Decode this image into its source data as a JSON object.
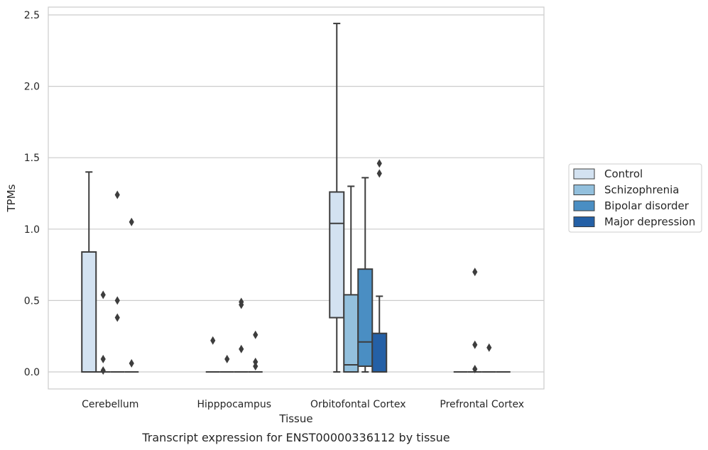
{
  "caption": "Transcript expression for ENST00000336112 by tissue",
  "chart_data": {
    "type": "box",
    "xlabel": "Tissue",
    "ylabel": "TPMs",
    "ylim": [
      -0.12,
      2.57
    ],
    "yticks": [
      "0.0",
      "0.5",
      "1.0",
      "1.5",
      "2.0",
      "2.5"
    ],
    "ytick_values": [
      0,
      0.5,
      1.0,
      1.5,
      2.0,
      2.5
    ],
    "grid": true,
    "legend_position": "right",
    "categories": [
      "Cerebellum",
      "Hipppocampus",
      "Orbitofontal Cortex",
      "Prefrontal Cortex"
    ],
    "series": [
      {
        "name": "Control",
        "color": "#d3e2f1"
      },
      {
        "name": "Schizophrenia",
        "color": "#93c0dd"
      },
      {
        "name": "Bipolar disorder",
        "color": "#4a8ec3"
      },
      {
        "name": "Major depression",
        "color": "#2460a6"
      }
    ],
    "boxes": [
      {
        "category": "Cerebellum",
        "series": "Control",
        "whisker_low": 0,
        "q1": 0,
        "median": 0,
        "q3": 0.84,
        "whisker_high": 1.4,
        "outliers": []
      },
      {
        "category": "Cerebellum",
        "series": "Schizophrenia",
        "whisker_low": 0,
        "q1": 0,
        "median": 0,
        "q3": 0,
        "whisker_high": 0,
        "outliers": [
          0.54,
          0.09,
          0.01
        ]
      },
      {
        "category": "Cerebellum",
        "series": "Bipolar disorder",
        "whisker_low": 0,
        "q1": 0,
        "median": 0,
        "q3": 0,
        "whisker_high": 0,
        "outliers": [
          1.24,
          0.5,
          0.38
        ]
      },
      {
        "category": "Cerebellum",
        "series": "Major depression",
        "whisker_low": 0,
        "q1": 0,
        "median": 0,
        "q3": 0,
        "whisker_high": 0,
        "outliers": [
          1.05,
          0.06
        ]
      },
      {
        "category": "Hipppocampus",
        "series": "Control",
        "whisker_low": 0,
        "q1": 0,
        "median": 0,
        "q3": 0,
        "whisker_high": 0,
        "outliers": [
          0.22
        ]
      },
      {
        "category": "Hipppocampus",
        "series": "Schizophrenia",
        "whisker_low": 0,
        "q1": 0,
        "median": 0,
        "q3": 0,
        "whisker_high": 0,
        "outliers": [
          0.09
        ]
      },
      {
        "category": "Hipppocampus",
        "series": "Bipolar disorder",
        "whisker_low": 0,
        "q1": 0,
        "median": 0,
        "q3": 0,
        "whisker_high": 0,
        "outliers": [
          0.49,
          0.47,
          0.16
        ]
      },
      {
        "category": "Hipppocampus",
        "series": "Major depression",
        "whisker_low": 0,
        "q1": 0,
        "median": 0,
        "q3": 0,
        "whisker_high": 0,
        "outliers": [
          0.26,
          0.07,
          0.04
        ]
      },
      {
        "category": "Orbitofontal Cortex",
        "series": "Control",
        "whisker_low": 0,
        "q1": 0.38,
        "median": 1.04,
        "q3": 1.26,
        "whisker_high": 2.44,
        "outliers": []
      },
      {
        "category": "Orbitofontal Cortex",
        "series": "Schizophrenia",
        "whisker_low": 0,
        "q1": 0,
        "median": 0.05,
        "q3": 0.54,
        "whisker_high": 1.3,
        "outliers": []
      },
      {
        "category": "Orbitofontal Cortex",
        "series": "Bipolar disorder",
        "whisker_low": 0,
        "q1": 0.04,
        "median": 0.21,
        "q3": 0.72,
        "whisker_high": 1.36,
        "outliers": []
      },
      {
        "category": "Orbitofontal Cortex",
        "series": "Major depression",
        "whisker_low": 0,
        "q1": 0,
        "median": 0,
        "q3": 0.27,
        "whisker_high": 0.53,
        "outliers": [
          1.46,
          1.39
        ]
      },
      {
        "category": "Prefrontal Cortex",
        "series": "Control",
        "whisker_low": 0,
        "q1": 0,
        "median": 0,
        "q3": 0,
        "whisker_high": 0,
        "outliers": []
      },
      {
        "category": "Prefrontal Cortex",
        "series": "Schizophrenia",
        "whisker_low": 0,
        "q1": 0,
        "median": 0,
        "q3": 0,
        "whisker_high": 0,
        "outliers": [
          0.7,
          0.19,
          0.02
        ]
      },
      {
        "category": "Prefrontal Cortex",
        "series": "Bipolar disorder",
        "whisker_low": 0,
        "q1": 0,
        "median": 0,
        "q3": 0,
        "whisker_high": 0,
        "outliers": [
          0.17
        ]
      },
      {
        "category": "Prefrontal Cortex",
        "series": "Major depression",
        "whisker_low": 0,
        "q1": 0,
        "median": 0,
        "q3": 0,
        "whisker_high": 0,
        "outliers": []
      }
    ]
  }
}
